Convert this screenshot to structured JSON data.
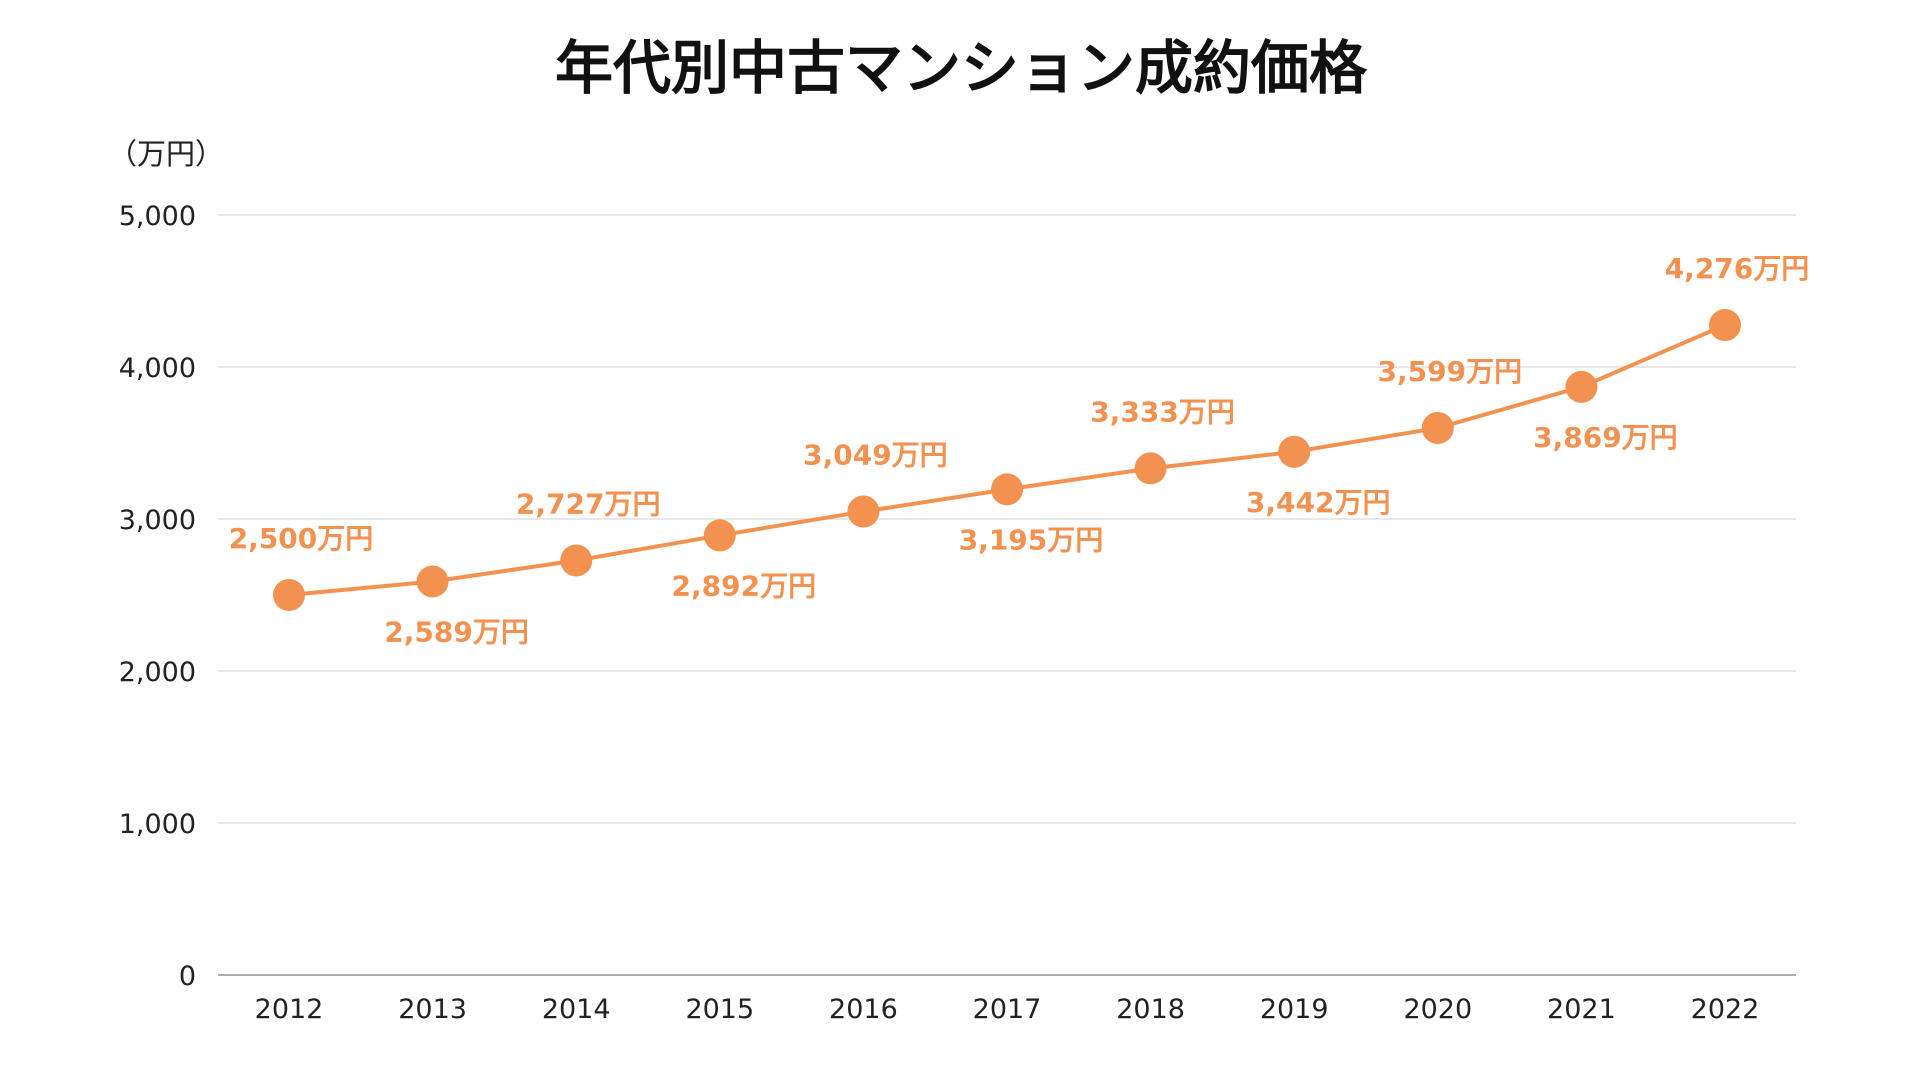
{
  "chart_data": {
    "type": "line",
    "title": "年代別中古マンション成約価格",
    "ylabel": "（万円）",
    "xlabel": "",
    "categories": [
      "2012",
      "2013",
      "2014",
      "2015",
      "2016",
      "2017",
      "2018",
      "2019",
      "2020",
      "2021",
      "2022"
    ],
    "series": [
      {
        "name": "成約価格",
        "values": [
          2500,
          2589,
          2727,
          2892,
          3049,
          3195,
          3333,
          3442,
          3599,
          3869,
          4276
        ],
        "color": "#F39250"
      }
    ],
    "data_labels": [
      "2,500万円",
      "2,589万円",
      "2,727万円",
      "2,892万円",
      "3,049万円",
      "3,195万円",
      "3,333万円",
      "3,442万円",
      "3,599万円",
      "3,869万円",
      "4,276万円"
    ],
    "label_positions": [
      "above",
      "below",
      "above",
      "below",
      "above",
      "below",
      "above",
      "below",
      "above",
      "below",
      "above"
    ],
    "ylim": [
      0,
      5000
    ],
    "yticks": [
      0,
      1000,
      2000,
      3000,
      4000,
      5000
    ],
    "ytick_labels": [
      "0",
      "1,000",
      "2,000",
      "3,000",
      "4,000",
      "5,000"
    ],
    "grid": true,
    "legend": "none",
    "colors": {
      "line": "#F39250",
      "grid": "#d9d9d9",
      "axis": "#b0b0b0"
    }
  }
}
